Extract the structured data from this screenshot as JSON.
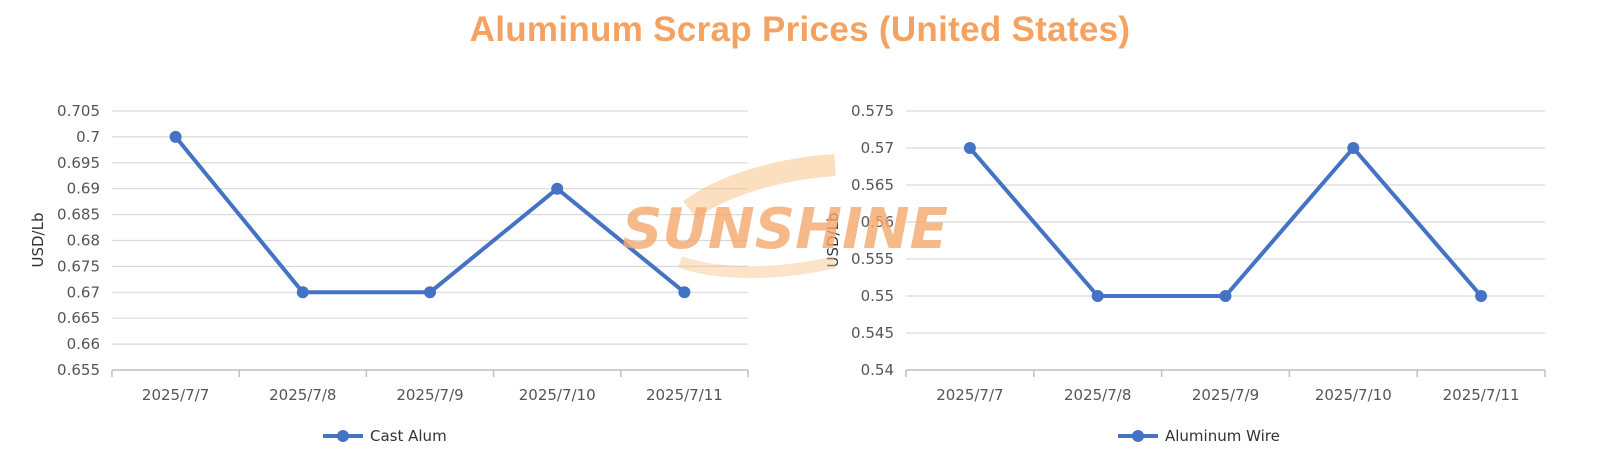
{
  "title": "Aluminum Scrap Prices (United States)",
  "watermark": {
    "text": "SUNSHINE",
    "color": "#F5A86E"
  },
  "colors": {
    "title": "#F4A261",
    "series": "#4472C4",
    "grid": "#D9D9D9"
  },
  "chart_data": [
    {
      "type": "line",
      "categories": [
        "2025/7/7",
        "2025/7/8",
        "2025/7/9",
        "2025/7/10",
        "2025/7/11"
      ],
      "series": [
        {
          "name": "Cast Alum",
          "values": [
            0.7,
            0.67,
            0.67,
            0.69,
            0.67
          ]
        }
      ],
      "ylabel": "USD/Lb",
      "ylim": [
        0.655,
        0.705
      ],
      "yticks": [
        "0.655",
        "0.66",
        "0.665",
        "0.67",
        "0.675",
        "0.68",
        "0.685",
        "0.69",
        "0.695",
        "0.7",
        "0.705"
      ],
      "grid": true,
      "legend": "bottom"
    },
    {
      "type": "line",
      "categories": [
        "2025/7/7",
        "2025/7/8",
        "2025/7/9",
        "2025/7/10",
        "2025/7/11"
      ],
      "series": [
        {
          "name": "Aluminum Wire",
          "values": [
            0.57,
            0.55,
            0.55,
            0.57,
            0.55
          ]
        }
      ],
      "ylabel": "USD/Lb",
      "ylim": [
        0.54,
        0.575
      ],
      "yticks": [
        "0.54",
        "0.545",
        "0.55",
        "0.555",
        "0.56",
        "0.565",
        "0.57",
        "0.575"
      ],
      "grid": true,
      "legend": "bottom"
    }
  ]
}
